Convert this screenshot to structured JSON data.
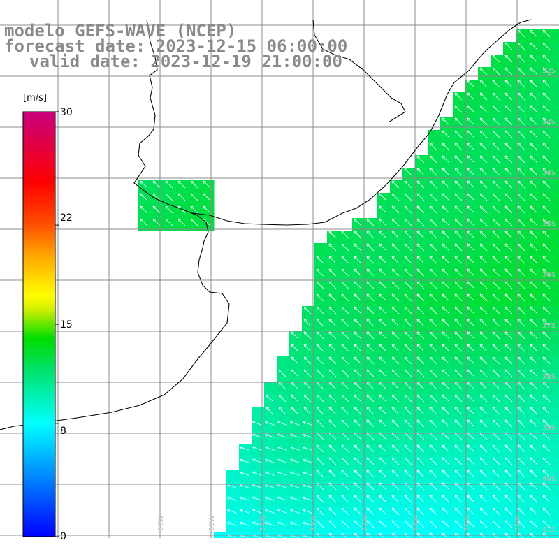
{
  "title": {
    "line1": "modelo GEFS-WAVE (NCEP)",
    "line2": "forecast date: 2023-12-15 06:00:00",
    "line3": "valid date: 2023-12-19 21:00:00"
  },
  "colorbar": {
    "unit": "[m/s]",
    "min": 0,
    "max": 30,
    "ticks": [
      {
        "value": 30,
        "label": "30"
      },
      {
        "value": 22,
        "label": "22"
      },
      {
        "value": 15,
        "label": "15"
      },
      {
        "value": 8,
        "label": "8"
      },
      {
        "value": 0,
        "label": "0"
      }
    ],
    "stops": [
      {
        "value": 0,
        "color": "#0000ff"
      },
      {
        "value": 4,
        "color": "#0080ff"
      },
      {
        "value": 8,
        "color": "#00ffff"
      },
      {
        "value": 12,
        "color": "#00e060"
      },
      {
        "value": 14,
        "color": "#00dd00"
      },
      {
        "value": 16,
        "color": "#ccee00"
      },
      {
        "value": 17,
        "color": "#ffff00"
      },
      {
        "value": 20,
        "color": "#ffa000"
      },
      {
        "value": 22,
        "color": "#ff5000"
      },
      {
        "value": 25,
        "color": "#ff0000"
      },
      {
        "value": 30,
        "color": "#c8007e"
      }
    ]
  },
  "map_colors": {
    "land": "#ffffff",
    "coast": "#000000",
    "grid": "#8c8c8c",
    "arrows": "#ffffff"
  },
  "lat_labels": [
    "32S",
    "33S",
    "34S",
    "35S",
    "36S",
    "37S",
    "38S",
    "39S",
    "40S",
    "41S"
  ],
  "lon_labels": [
    "56W",
    "55W",
    "54W",
    "53W",
    "52W",
    "51W",
    "50W",
    "49W"
  ]
}
